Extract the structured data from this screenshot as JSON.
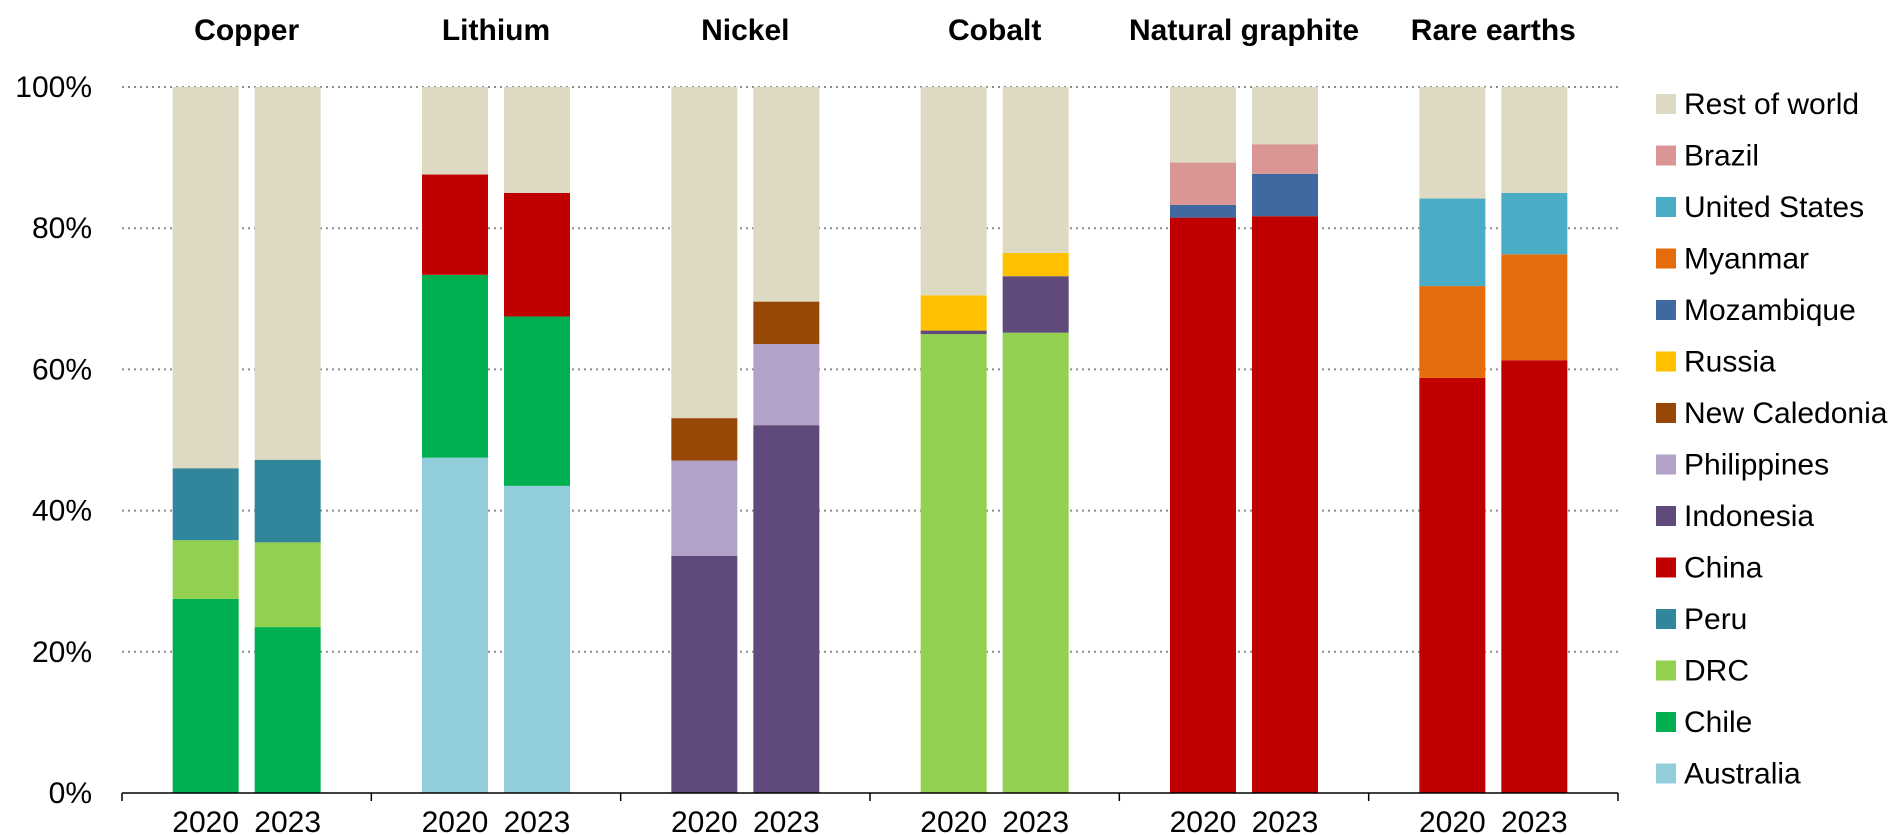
{
  "chart_data": {
    "type": "bar",
    "stacked": true,
    "percent_scale": true,
    "grid": "horizontal dotted",
    "legend_position": "right",
    "y_ticks": [
      "0%",
      "20%",
      "40%",
      "60%",
      "80%",
      "100%"
    ],
    "ylim": [
      0,
      100
    ],
    "legend": [
      {
        "name": "Rest of world",
        "color": "#DDD9C3"
      },
      {
        "name": "Brazil",
        "color": "#DA9694"
      },
      {
        "name": "United States",
        "color": "#4BACC6"
      },
      {
        "name": "Myanmar",
        "color": "#E46C0A"
      },
      {
        "name": "Mozambique",
        "color": "#4068A1"
      },
      {
        "name": "Russia",
        "color": "#FFC000"
      },
      {
        "name": "New Caledonia",
        "color": "#974706"
      },
      {
        "name": "Philippines",
        "color": "#B2A2C7"
      },
      {
        "name": "Indonesia",
        "color": "#604A7B"
      },
      {
        "name": "China",
        "color": "#C00000"
      },
      {
        "name": "Peru",
        "color": "#31869B"
      },
      {
        "name": "DRC",
        "color": "#92D050"
      },
      {
        "name": "Chile",
        "color": "#00B050"
      },
      {
        "name": "Australia",
        "color": "#92CDDC"
      }
    ],
    "panels": [
      {
        "title": "Copper",
        "bars": [
          {
            "year": "2020",
            "segments": [
              {
                "country": "Chile",
                "value": 27.5
              },
              {
                "country": "DRC",
                "value": 8.3
              },
              {
                "country": "Peru",
                "value": 10.2
              },
              {
                "country": "Rest of world",
                "value": 54.0
              }
            ]
          },
          {
            "year": "2023",
            "segments": [
              {
                "country": "Chile",
                "value": 23.5
              },
              {
                "country": "DRC",
                "value": 12.0
              },
              {
                "country": "Peru",
                "value": 11.7
              },
              {
                "country": "Rest of world",
                "value": 52.8
              }
            ]
          }
        ]
      },
      {
        "title": "Lithium",
        "bars": [
          {
            "year": "2020",
            "segments": [
              {
                "country": "Australia",
                "value": 47.5
              },
              {
                "country": "Chile",
                "value": 25.9
              },
              {
                "country": "China",
                "value": 14.2
              },
              {
                "country": "Rest of world",
                "value": 12.4
              }
            ]
          },
          {
            "year": "2023",
            "segments": [
              {
                "country": "Australia",
                "value": 43.5
              },
              {
                "country": "Chile",
                "value": 24.0
              },
              {
                "country": "China",
                "value": 17.5
              },
              {
                "country": "Rest of world",
                "value": 15.0
              }
            ]
          }
        ]
      },
      {
        "title": "Nickel",
        "bars": [
          {
            "year": "2020",
            "segments": [
              {
                "country": "Indonesia",
                "value": 33.6
              },
              {
                "country": "Philippines",
                "value": 13.5
              },
              {
                "country": "New Caledonia",
                "value": 6.0
              },
              {
                "country": "Rest of world",
                "value": 46.9
              }
            ]
          },
          {
            "year": "2023",
            "segments": [
              {
                "country": "Indonesia",
                "value": 52.1
              },
              {
                "country": "Philippines",
                "value": 11.5
              },
              {
                "country": "New Caledonia",
                "value": 6.0
              },
              {
                "country": "Rest of world",
                "value": 30.4
              }
            ]
          }
        ]
      },
      {
        "title": "Cobalt",
        "bars": [
          {
            "year": "2020",
            "segments": [
              {
                "country": "DRC",
                "value": 65.0
              },
              {
                "country": "Indonesia",
                "value": 0.5
              },
              {
                "country": "Russia",
                "value": 5.0
              },
              {
                "country": "Rest of world",
                "value": 29.5
              }
            ]
          },
          {
            "year": "2023",
            "segments": [
              {
                "country": "DRC",
                "value": 65.2
              },
              {
                "country": "Indonesia",
                "value": 8.0
              },
              {
                "country": "Russia",
                "value": 3.3
              },
              {
                "country": "Rest of world",
                "value": 23.5
              }
            ]
          }
        ]
      },
      {
        "title": "Natural graphite",
        "bars": [
          {
            "year": "2020",
            "segments": [
              {
                "country": "China",
                "value": 81.5
              },
              {
                "country": "Mozambique",
                "value": 1.8
              },
              {
                "country": "Brazil",
                "value": 6.0
              },
              {
                "country": "Rest of world",
                "value": 10.7
              }
            ]
          },
          {
            "year": "2023",
            "segments": [
              {
                "country": "China",
                "value": 81.7
              },
              {
                "country": "Mozambique",
                "value": 6.0
              },
              {
                "country": "Brazil",
                "value": 4.2
              },
              {
                "country": "Rest of world",
                "value": 8.1
              }
            ]
          }
        ]
      },
      {
        "title": "Rare earths",
        "bars": [
          {
            "year": "2020",
            "segments": [
              {
                "country": "China",
                "value": 58.8
              },
              {
                "country": "Myanmar",
                "value": 13.0
              },
              {
                "country": "United States",
                "value": 12.4
              },
              {
                "country": "Rest of world",
                "value": 15.8
              }
            ]
          },
          {
            "year": "2023",
            "segments": [
              {
                "country": "China",
                "value": 61.3
              },
              {
                "country": "Myanmar",
                "value": 15.0
              },
              {
                "country": "United States",
                "value": 8.7
              },
              {
                "country": "Rest of world",
                "value": 15.0
              }
            ]
          }
        ]
      }
    ]
  }
}
